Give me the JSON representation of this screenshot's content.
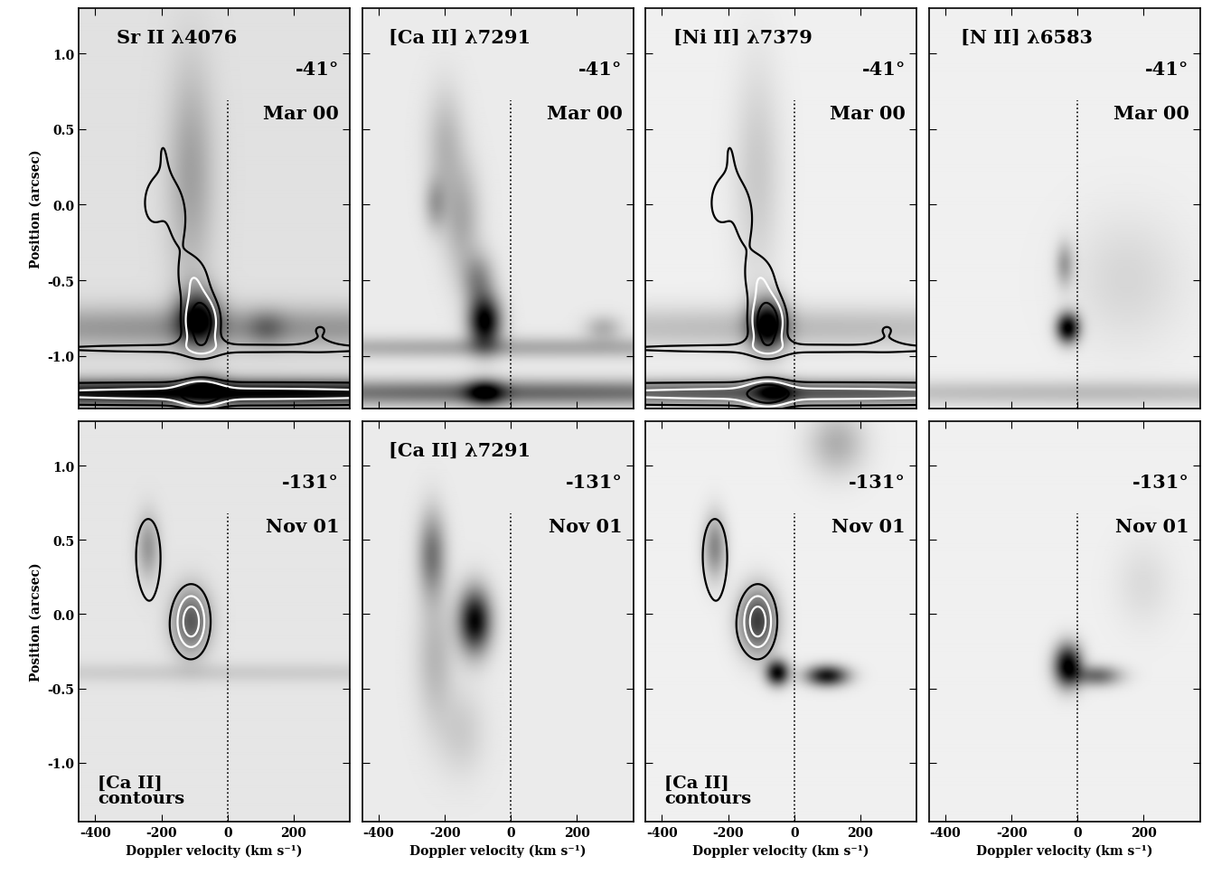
{
  "chart_data": [
    {
      "type": "heatmap",
      "title": "Sr II λ4076",
      "annotations": [
        "-41°",
        "Mar 00"
      ],
      "y_label": "Position (arcsec)",
      "tick_labels": "y",
      "xlim": [
        -450,
        370
      ],
      "ylim": [
        -1.35,
        1.3
      ],
      "xticks": [
        -400,
        -200,
        0,
        200
      ],
      "yticks": [
        -1.0,
        -0.5,
        0.0,
        0.5,
        1.0
      ],
      "zlim": [
        0,
        1
      ],
      "reference_x": 0,
      "background": 0.12,
      "components": [
        {
          "velocity": -110,
          "position": 0.2,
          "velocity_width": 50,
          "position_width": 0.5,
          "intensity": 0.25
        },
        {
          "velocity": -90,
          "position": -0.75,
          "velocity_width": 45,
          "position_width": 0.13,
          "intensity": 0.75
        },
        {
          "velocity": 0,
          "position": -0.82,
          "velocity_width": 1000,
          "position_width": 0.1,
          "intensity": 0.3
        },
        {
          "velocity": 0,
          "position": -1.25,
          "velocity_width": 1000,
          "position_width": 0.06,
          "intensity": 0.9
        },
        {
          "velocity": -60,
          "position": -1.2,
          "velocity_width": 40,
          "position_width": 0.06,
          "intensity": 0.3
        },
        {
          "velocity": 120,
          "position": -0.82,
          "velocity_width": 40,
          "position_width": 0.08,
          "intensity": 0.2
        }
      ],
      "contours": {
        "source": "[Ca II] λ7291",
        "levels": [
          0.3,
          0.5,
          0.75
        ],
        "colors": [
          "black",
          "white",
          "black"
        ]
      }
    },
    {
      "type": "heatmap",
      "title": "[Ca II] λ7291",
      "annotations": [
        "-41°",
        "Mar 00"
      ],
      "tick_labels": false,
      "xlim": [
        -450,
        370
      ],
      "ylim": [
        -1.35,
        1.3
      ],
      "xticks": [
        -400,
        -200,
        0,
        200
      ],
      "yticks": [
        -1.0,
        -0.5,
        0.0,
        0.5,
        1.0
      ],
      "zlim": [
        0,
        1
      ],
      "reference_x": 0,
      "background": 0.08,
      "components": [
        {
          "velocity": -200,
          "position": 0.4,
          "velocity_width": 40,
          "position_width": 0.25,
          "intensity": 0.2
        },
        {
          "velocity": -150,
          "position": -0.1,
          "velocity_width": 40,
          "position_width": 0.25,
          "intensity": 0.25
        },
        {
          "velocity": -230,
          "position": 0.0,
          "velocity_width": 25,
          "position_width": 0.12,
          "intensity": 0.25
        },
        {
          "velocity": -80,
          "position": -0.78,
          "velocity_width": 35,
          "position_width": 0.12,
          "intensity": 0.95
        },
        {
          "velocity": -100,
          "position": -0.5,
          "velocity_width": 35,
          "position_width": 0.12,
          "intensity": 0.35
        },
        {
          "velocity": 280,
          "position": -0.82,
          "velocity_width": 40,
          "position_width": 0.06,
          "intensity": 0.22
        },
        {
          "velocity": 0,
          "position": -0.95,
          "velocity_width": 1000,
          "position_width": 0.05,
          "intensity": 0.25
        },
        {
          "velocity": 0,
          "position": -1.25,
          "velocity_width": 1000,
          "position_width": 0.06,
          "intensity": 0.5
        },
        {
          "velocity": -80,
          "position": -1.25,
          "velocity_width": 40,
          "position_width": 0.06,
          "intensity": 0.6
        }
      ]
    },
    {
      "type": "heatmap",
      "title": "[Ni II] λ7379",
      "annotations": [
        "-41°",
        "Mar 00"
      ],
      "tick_labels": false,
      "xlim": [
        -450,
        370
      ],
      "ylim": [
        -1.35,
        1.3
      ],
      "xticks": [
        -400,
        -200,
        0,
        200
      ],
      "yticks": [
        -1.0,
        -0.5,
        0.0,
        0.5,
        1.0
      ],
      "zlim": [
        0,
        1
      ],
      "reference_x": 0,
      "background": 0.06,
      "components": [
        {
          "velocity": -110,
          "position": 0.2,
          "velocity_width": 50,
          "position_width": 0.5,
          "intensity": 0.15
        },
        {
          "velocity": -80,
          "position": -0.8,
          "velocity_width": 40,
          "position_width": 0.12,
          "intensity": 0.9
        },
        {
          "velocity": 0,
          "position": -0.82,
          "velocity_width": 1000,
          "position_width": 0.1,
          "intensity": 0.2
        },
        {
          "velocity": 0,
          "position": -1.25,
          "velocity_width": 1000,
          "position_width": 0.06,
          "intensity": 0.6
        },
        {
          "velocity": -60,
          "position": -1.25,
          "velocity_width": 40,
          "position_width": 0.06,
          "intensity": 0.5
        }
      ],
      "contours": {
        "source": "[Ca II] λ7291",
        "levels": [
          0.3,
          0.5,
          0.75
        ],
        "colors": [
          "black",
          "white",
          "black"
        ]
      }
    },
    {
      "type": "heatmap",
      "title": "[N II] λ6583",
      "annotations": [
        "-41°",
        "Mar 00"
      ],
      "tick_labels": false,
      "xlim": [
        -450,
        370
      ],
      "ylim": [
        -1.35,
        1.3
      ],
      "xticks": [
        -400,
        -200,
        0,
        200
      ],
      "yticks": [
        -1.0,
        -0.5,
        0.0,
        0.5,
        1.0
      ],
      "zlim": [
        0,
        1
      ],
      "reference_x": 0,
      "background": 0.06,
      "components": [
        {
          "velocity": -30,
          "position": -0.82,
          "velocity_width": 25,
          "position_width": 0.07,
          "intensity": 0.95
        },
        {
          "velocity": -40,
          "position": -0.4,
          "velocity_width": 20,
          "position_width": 0.1,
          "intensity": 0.3
        },
        {
          "velocity": 150,
          "position": -0.5,
          "velocity_width": 120,
          "position_width": 0.3,
          "intensity": 0.1
        },
        {
          "velocity": 0,
          "position": -1.25,
          "velocity_width": 1000,
          "position_width": 0.06,
          "intensity": 0.2
        }
      ]
    },
    {
      "type": "heatmap",
      "title": "",
      "annotations": [
        "-131°",
        "Nov 01",
        "[Ca II]\ncontours"
      ],
      "x_label": "Doppler velocity (km s⁻¹)",
      "y_label": "Position (arcsec)",
      "tick_labels": true,
      "xlim": [
        -450,
        370
      ],
      "ylim": [
        -1.4,
        1.3
      ],
      "xticks": [
        -400,
        -200,
        0,
        200
      ],
      "yticks": [
        -1.0,
        -0.5,
        0.0,
        0.5,
        1.0
      ],
      "zlim": [
        0,
        1
      ],
      "reference_x": 0,
      "background": 0.1,
      "components": [
        {
          "velocity": -110,
          "position": -0.05,
          "velocity_width": 40,
          "position_width": 0.15,
          "intensity": 0.55
        },
        {
          "velocity": -240,
          "position": 0.45,
          "velocity_width": 25,
          "position_width": 0.15,
          "intensity": 0.3
        },
        {
          "velocity": 0,
          "position": -0.4,
          "velocity_width": 1000,
          "position_width": 0.05,
          "intensity": 0.1
        }
      ],
      "contours": {
        "source": "[Ca II] λ7291",
        "levels": [
          0.3,
          0.55,
          0.8
        ],
        "colors": [
          "black",
          "white",
          "white"
        ]
      }
    },
    {
      "type": "heatmap",
      "title": "[Ca II] λ7291",
      "annotations": [
        "-131°",
        "Nov 01"
      ],
      "x_label": "Doppler velocity (km s⁻¹)",
      "tick_labels": "x",
      "xlim": [
        -450,
        370
      ],
      "ylim": [
        -1.4,
        1.3
      ],
      "xticks": [
        -400,
        -200,
        0,
        200
      ],
      "yticks": [
        -1.0,
        -0.5,
        0.0,
        0.5,
        1.0
      ],
      "zlim": [
        0,
        1
      ],
      "reference_x": 0,
      "background": 0.08,
      "components": [
        {
          "velocity": -110,
          "position": -0.05,
          "velocity_width": 35,
          "position_width": 0.15,
          "intensity": 0.9
        },
        {
          "velocity": -240,
          "position": 0.4,
          "velocity_width": 30,
          "position_width": 0.2,
          "intensity": 0.45
        },
        {
          "velocity": -230,
          "position": -0.3,
          "velocity_width": 40,
          "position_width": 0.3,
          "intensity": 0.2
        },
        {
          "velocity": -150,
          "position": -0.8,
          "velocity_width": 50,
          "position_width": 0.2,
          "intensity": 0.12
        }
      ]
    },
    {
      "type": "heatmap",
      "title": "",
      "annotations": [
        "-131°",
        "Nov 01",
        "[Ca II]\ncontours"
      ],
      "x_label": "Doppler velocity (km s⁻¹)",
      "tick_labels": "x",
      "xlim": [
        -450,
        370
      ],
      "ylim": [
        -1.4,
        1.3
      ],
      "xticks": [
        -400,
        -200,
        0,
        200
      ],
      "yticks": [
        -1.0,
        -0.5,
        0.0,
        0.5,
        1.0
      ],
      "zlim": [
        0,
        1
      ],
      "reference_x": 0,
      "background": 0.06,
      "components": [
        {
          "velocity": -110,
          "position": -0.05,
          "velocity_width": 40,
          "position_width": 0.15,
          "intensity": 0.7
        },
        {
          "velocity": -240,
          "position": 0.45,
          "velocity_width": 25,
          "position_width": 0.15,
          "intensity": 0.4
        },
        {
          "velocity": -50,
          "position": -0.4,
          "velocity_width": 25,
          "position_width": 0.06,
          "intensity": 0.9
        },
        {
          "velocity": 100,
          "position": -0.42,
          "velocity_width": 45,
          "position_width": 0.05,
          "intensity": 0.85
        },
        {
          "velocity": 130,
          "position": 1.15,
          "velocity_width": 60,
          "position_width": 0.15,
          "intensity": 0.25
        }
      ],
      "contours": {
        "source": "[Ca II] λ7291",
        "levels": [
          0.3,
          0.55,
          0.8
        ],
        "colors": [
          "black",
          "white",
          "white"
        ]
      }
    },
    {
      "type": "heatmap",
      "title": "",
      "annotations": [
        "-131°",
        "Nov 01"
      ],
      "x_label": "Doppler velocity (km s⁻¹)",
      "tick_labels": "x",
      "xlim": [
        -450,
        370
      ],
      "ylim": [
        -1.4,
        1.3
      ],
      "xticks": [
        -400,
        -200,
        0,
        200
      ],
      "yticks": [
        -1.0,
        -0.5,
        0.0,
        0.5,
        1.0
      ],
      "zlim": [
        0,
        1
      ],
      "reference_x": 0,
      "background": 0.06,
      "components": [
        {
          "velocity": -30,
          "position": -0.35,
          "velocity_width": 30,
          "position_width": 0.1,
          "intensity": 0.95
        },
        {
          "velocity": 60,
          "position": -0.42,
          "velocity_width": 50,
          "position_width": 0.05,
          "intensity": 0.5
        },
        {
          "velocity": 200,
          "position": 0.2,
          "velocity_width": 60,
          "position_width": 0.2,
          "intensity": 0.08
        }
      ]
    }
  ]
}
